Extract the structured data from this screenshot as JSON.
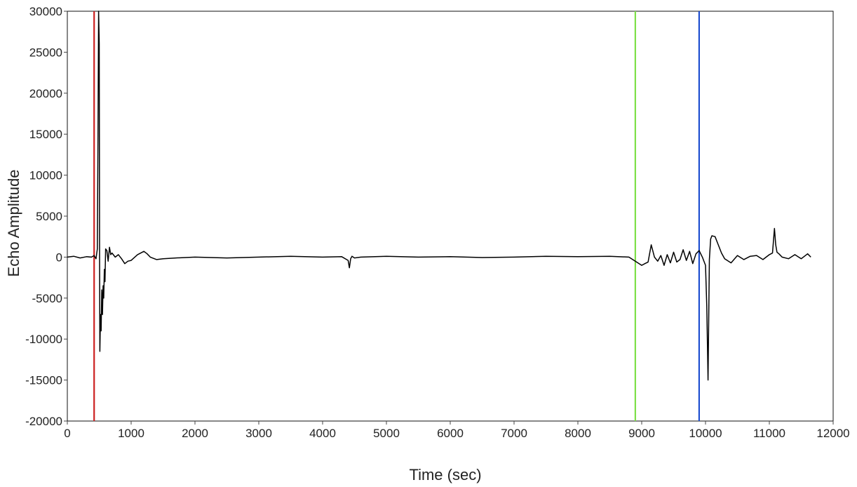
{
  "chart_data": {
    "type": "line",
    "title": "",
    "xlabel": "Time (sec)",
    "ylabel": "Echo Amplitude",
    "xlim": [
      0,
      12000
    ],
    "ylim": [
      -20000,
      30000
    ],
    "x_ticks": [
      "0",
      "1000",
      "2000",
      "3000",
      "4000",
      "5000",
      "6000",
      "7000",
      "8000",
      "9000",
      "10000",
      "11000",
      "12000"
    ],
    "y_ticks": [
      "30000",
      "25000",
      "20000",
      "15000",
      "10000",
      "5000",
      "0",
      "-5000",
      "-10000",
      "-15000",
      "-20000"
    ],
    "grid": false,
    "legend": "none",
    "series": [
      {
        "color": "#000000",
        "x": [
          0,
          100,
          200,
          300,
          380,
          420,
          450,
          470,
          480,
          490,
          500,
          505,
          510,
          520,
          530,
          540,
          550,
          560,
          570,
          580,
          590,
          600,
          620,
          640,
          660,
          680,
          700,
          750,
          800,
          850,
          900,
          950,
          1000,
          1100,
          1200,
          1250,
          1300,
          1400,
          1500,
          1700,
          2000,
          2500,
          3000,
          3500,
          4000,
          4300,
          4400,
          4420,
          4440,
          4460,
          4480,
          4500,
          4600,
          5000,
          5500,
          6000,
          6500,
          7000,
          7500,
          8000,
          8500,
          8800,
          8900,
          9000,
          9050,
          9100,
          9150,
          9200,
          9250,
          9300,
          9350,
          9400,
          9450,
          9500,
          9550,
          9600,
          9650,
          9700,
          9750,
          9800,
          9850,
          9900,
          9950,
          10000,
          10020,
          10040,
          10060,
          10080,
          10100,
          10150,
          10200,
          10250,
          10300,
          10400,
          10500,
          10600,
          10700,
          10800,
          10900,
          11000,
          11050,
          11080,
          11100,
          11120,
          11150,
          11200,
          11300,
          11400,
          11500,
          11600,
          11650
        ],
        "values": [
          0,
          100,
          -100,
          50,
          0,
          200,
          -200,
          1000,
          14000,
          30000,
          26000,
          -500,
          -11500,
          -7000,
          -9000,
          -4000,
          -7000,
          -3500,
          -5000,
          -1500,
          -3000,
          1000,
          800,
          -500,
          1200,
          300,
          500,
          0,
          300,
          -200,
          -800,
          -500,
          -400,
          300,
          700,
          400,
          0,
          -300,
          -200,
          -100,
          0,
          -100,
          0,
          100,
          0,
          50,
          -400,
          -1300,
          -200,
          100,
          0,
          -100,
          0,
          100,
          0,
          50,
          -50,
          0,
          100,
          50,
          100,
          0,
          -500,
          -1000,
          -800,
          -600,
          1500,
          0,
          -500,
          200,
          -1000,
          300,
          -700,
          600,
          -600,
          -300,
          900,
          -400,
          700,
          -800,
          400,
          800,
          0,
          -1000,
          -6000,
          -15000,
          -300,
          2200,
          2600,
          2500,
          1500,
          500,
          -200,
          -700,
          200,
          -300,
          100,
          200,
          -300,
          300,
          500,
          3500,
          1500,
          600,
          400,
          0,
          -200,
          300,
          -200,
          400,
          0
        ]
      }
    ],
    "markers": [
      {
        "x": 420,
        "color": "#cc2020"
      },
      {
        "x": 8900,
        "color": "#7ee04a"
      },
      {
        "x": 9900,
        "color": "#2050d0"
      }
    ]
  }
}
